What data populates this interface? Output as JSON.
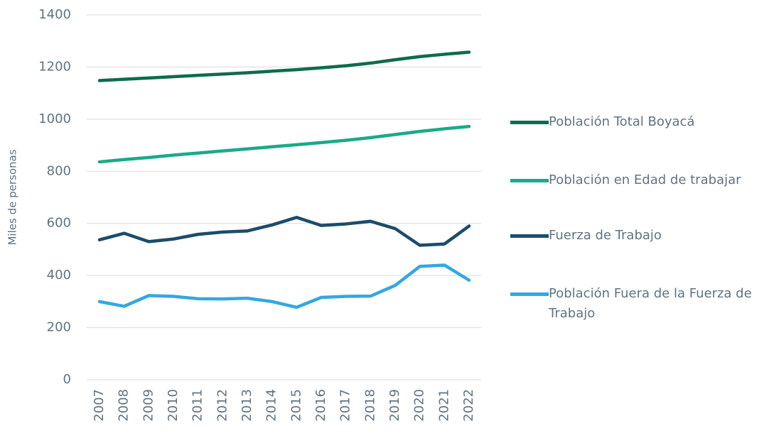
{
  "chart_data": {
    "type": "line",
    "y_label": "Miles de personas",
    "categories": [
      "2007",
      "2008",
      "2009",
      "2010",
      "2011",
      "2012",
      "2013",
      "2014",
      "2015",
      "2016",
      "2017",
      "2018",
      "2019",
      "2020",
      "2021",
      "2022"
    ],
    "series": [
      {
        "name": "Población Total Boyacá",
        "color": "#0e6b4f",
        "values": [
          1148,
          1153,
          1158,
          1163,
          1168,
          1173,
          1178,
          1184,
          1190,
          1197,
          1205,
          1215,
          1228,
          1240,
          1249,
          1257
        ]
      },
      {
        "name": "Población en Edad de trabajar",
        "color": "#1aaa88",
        "values": [
          836,
          845,
          853,
          862,
          870,
          878,
          886,
          894,
          902,
          910,
          919,
          929,
          941,
          953,
          963,
          972
        ]
      },
      {
        "name": "Fuerza de Trabajo",
        "color": "#1b4d6b",
        "values": [
          537,
          562,
          530,
          540,
          558,
          567,
          571,
          594,
          623,
          592,
          598,
          608,
          580,
          516,
          521,
          590
        ]
      },
      {
        "name": "Población Fuera de la Fuerza de Trabajo",
        "color": "#33a8e0",
        "values": [
          300,
          282,
          323,
          320,
          311,
          310,
          313,
          300,
          278,
          316,
          320,
          321,
          362,
          435,
          440,
          382
        ]
      }
    ],
    "ylim": [
      0,
      1400
    ],
    "yticks": [
      0,
      200,
      400,
      600,
      800,
      1000,
      1200,
      1400
    ],
    "grid": true
  }
}
